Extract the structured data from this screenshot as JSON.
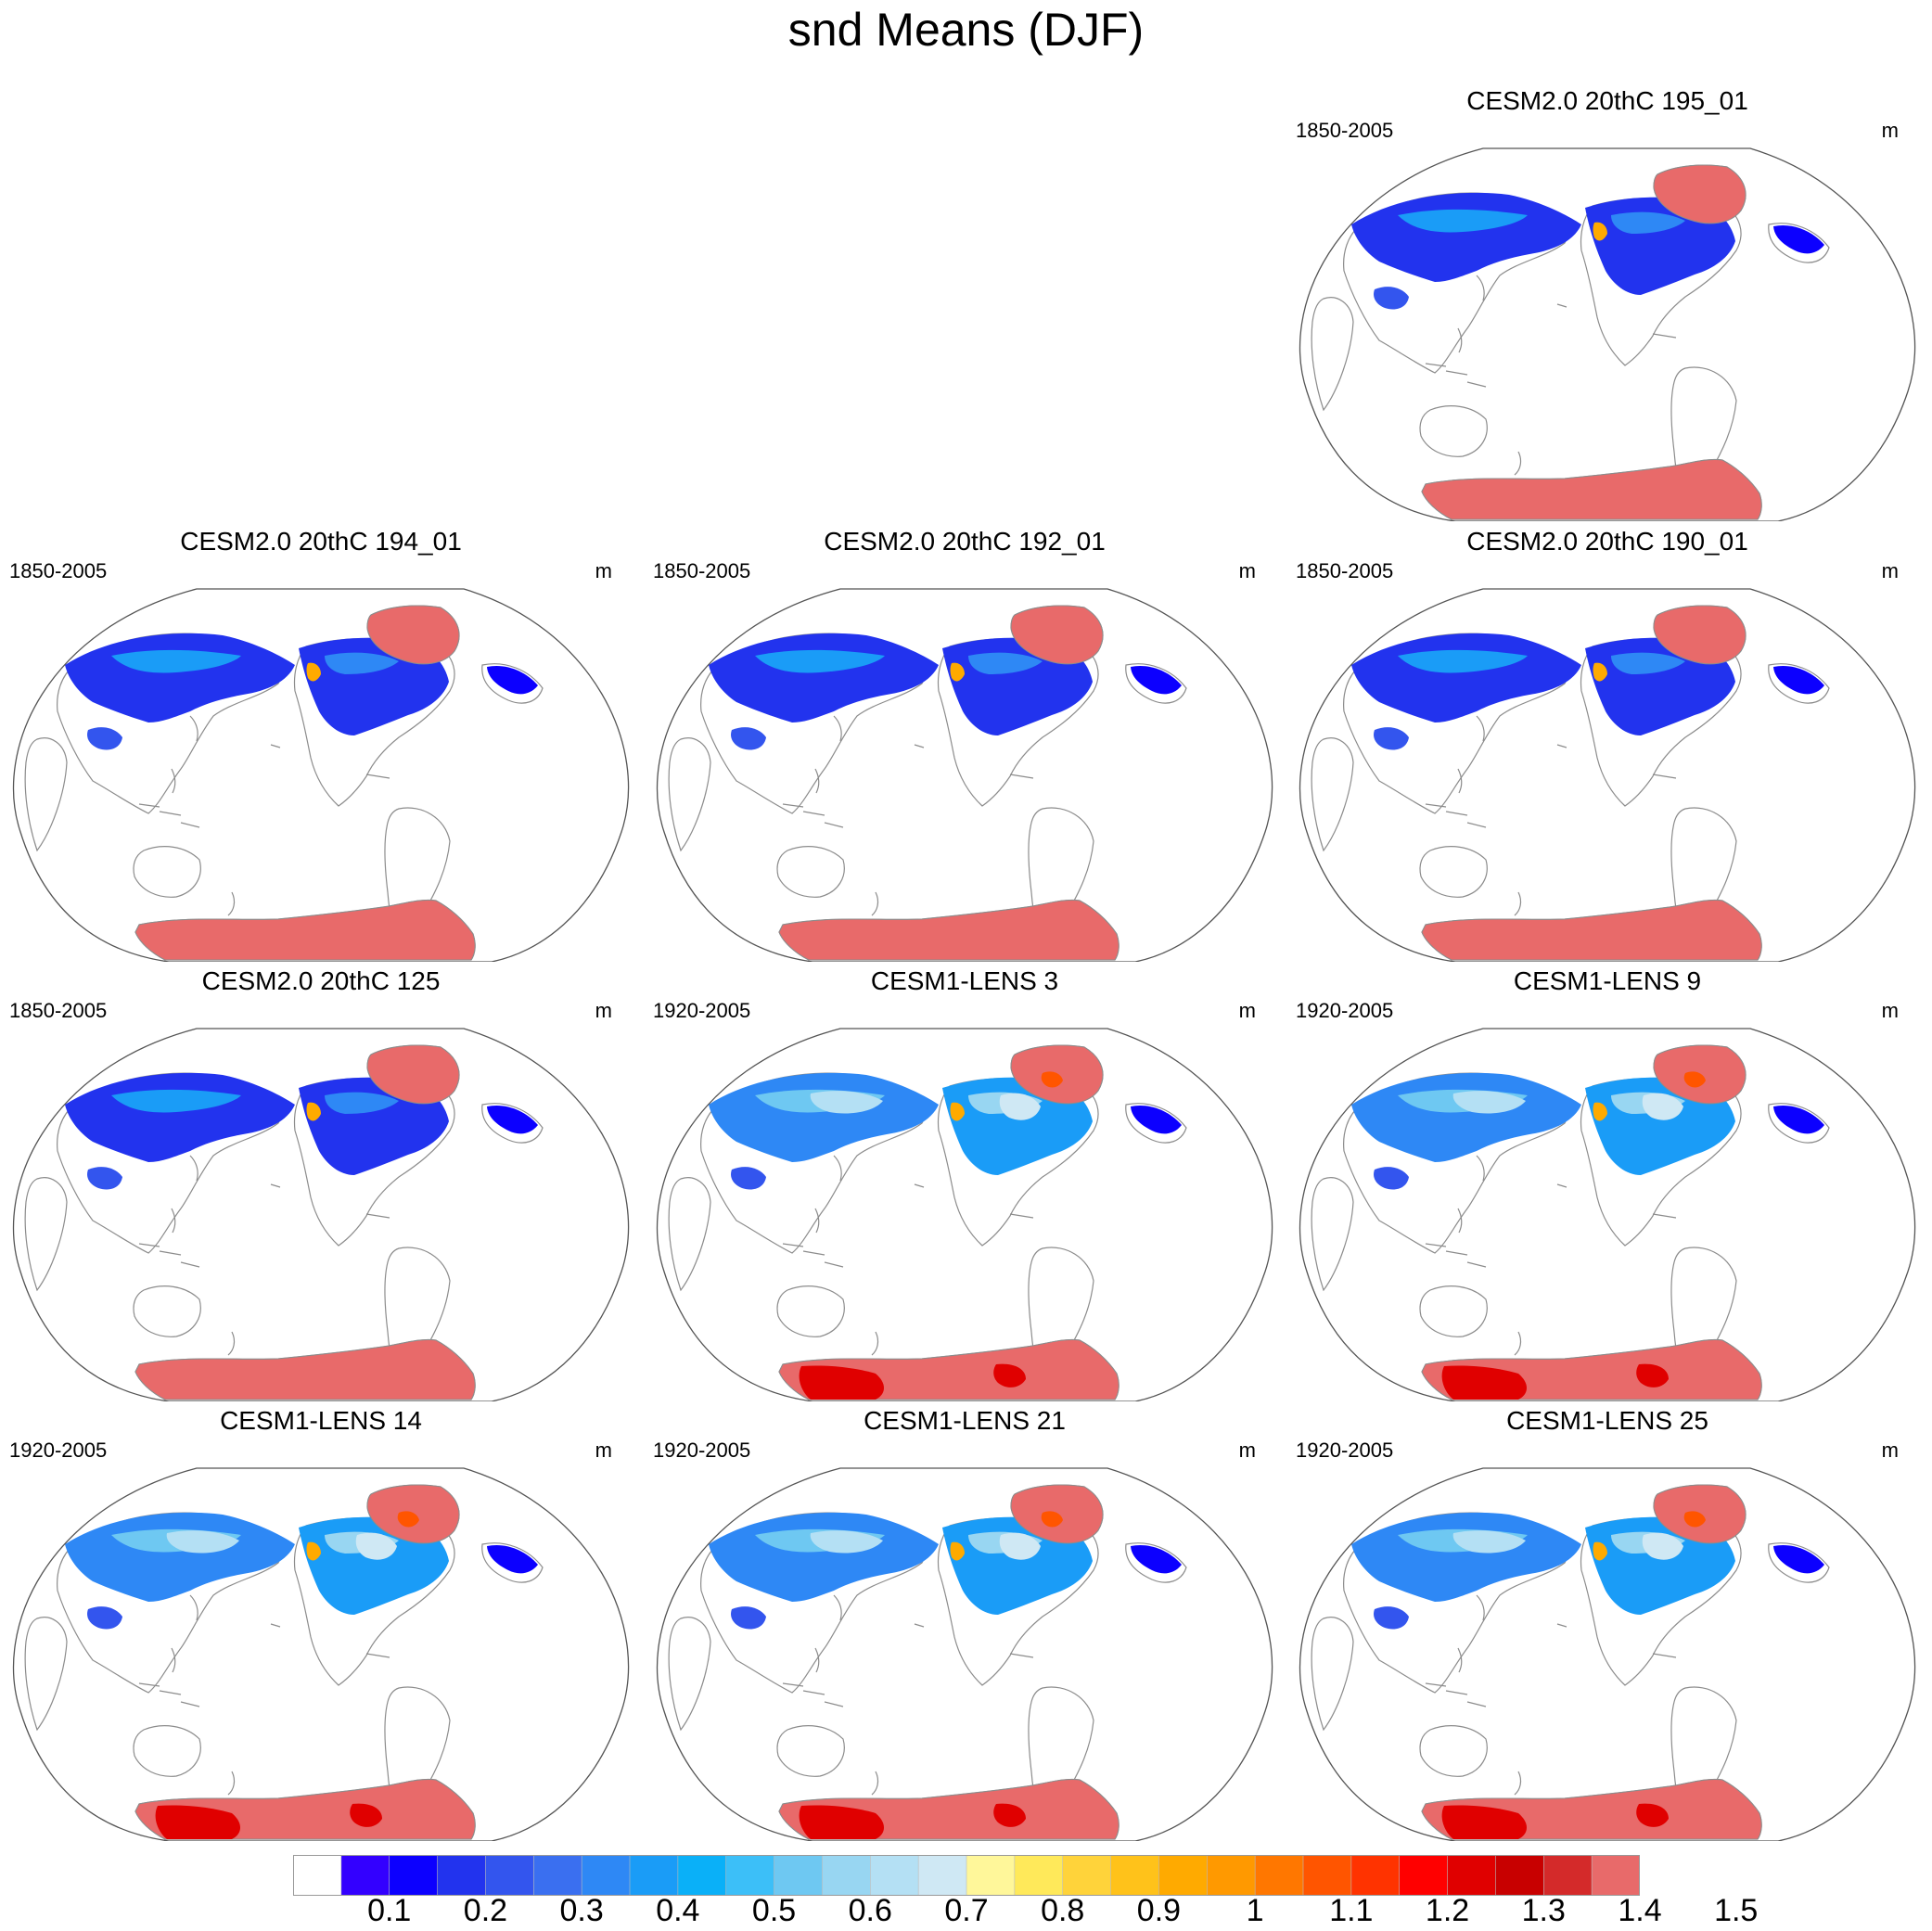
{
  "figure": {
    "title": "snd Means (DJF)"
  },
  "panels": [
    {
      "title": "CESM2.0 20thC 195_01",
      "years": "1850-2005",
      "units": "m"
    },
    {
      "title": "CESM2.0 20thC 194_01",
      "years": "1850-2005",
      "units": "m"
    },
    {
      "title": "CESM2.0 20thC 192_01",
      "years": "1850-2005",
      "units": "m"
    },
    {
      "title": "CESM2.0 20thC 190_01",
      "years": "1850-2005",
      "units": "m"
    },
    {
      "title": "CESM2.0 20thC 125",
      "years": "1850-2005",
      "units": "m"
    },
    {
      "title": "CESM1-LENS 3",
      "years": "1920-2005",
      "units": "m"
    },
    {
      "title": "CESM1-LENS 9",
      "years": "1920-2005",
      "units": "m"
    },
    {
      "title": "CESM1-LENS 14",
      "years": "1920-2005",
      "units": "m"
    },
    {
      "title": "CESM1-LENS 21",
      "years": "1920-2005",
      "units": "m"
    },
    {
      "title": "CESM1-LENS 25",
      "years": "1920-2005",
      "units": "m"
    }
  ],
  "colorbar": {
    "labels": [
      "0.1",
      "0.2",
      "0.3",
      "0.4",
      "0.5",
      "0.6",
      "0.7",
      "0.8",
      "0.9",
      "1",
      "1.1",
      "1.2",
      "1.3",
      "1.4",
      "1.5"
    ],
    "colors": [
      "#ffffff",
      "#3300ff",
      "#0c00ff",
      "#2233ee",
      "#3355ee",
      "#3a6ff0",
      "#2e88f5",
      "#1a9cf7",
      "#0ab0f8",
      "#3cbff8",
      "#6ec8f2",
      "#98d6f2",
      "#b4e0f4",
      "#cfe8f4",
      "#fff79a",
      "#ffe95a",
      "#ffd33a",
      "#ffc21a",
      "#ffaa00",
      "#ff9900",
      "#ff7700",
      "#ff5500",
      "#ff3300",
      "#ff0000",
      "#e00000",
      "#c80000",
      "#d42a2a",
      "#e86a6a"
    ]
  }
}
